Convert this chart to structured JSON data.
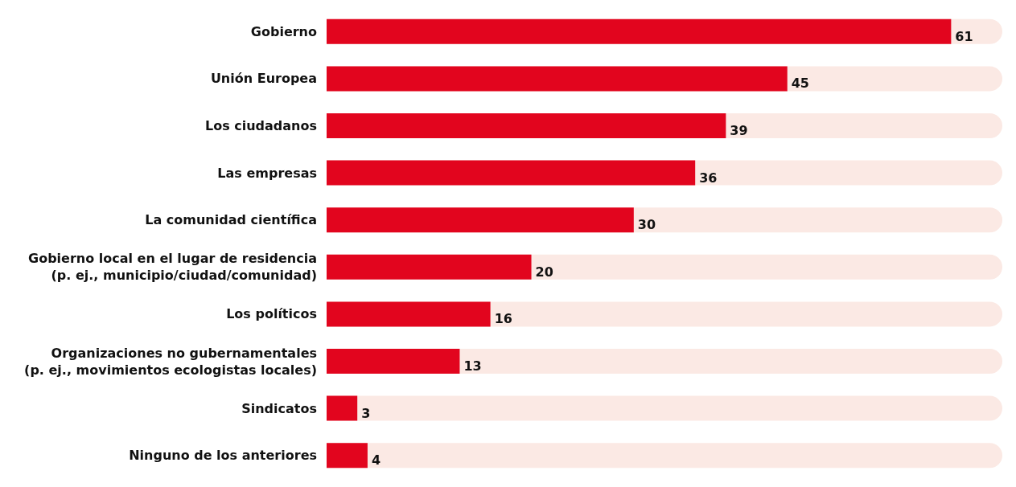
{
  "chart_data": {
    "type": "bar",
    "orientation": "horizontal",
    "categories": [
      "Gobierno",
      "Unión Europea",
      "Los ciudadanos",
      "Las empresas",
      "La comunidad científica",
      "Gobierno local en el lugar de residencia\n(p. ej., municipio/ciudad/comunidad)",
      "Los políticos",
      "Organizaciones no gubernamentales\n(p. ej., movimientos ecologistas locales)",
      "Sindicatos",
      "Ninguno de los anteriores"
    ],
    "values": [
      61,
      45,
      39,
      36,
      30,
      20,
      16,
      13,
      3,
      4
    ],
    "color": "#e2051e",
    "xlim": [
      0,
      66
    ],
    "data_labels": true
  }
}
